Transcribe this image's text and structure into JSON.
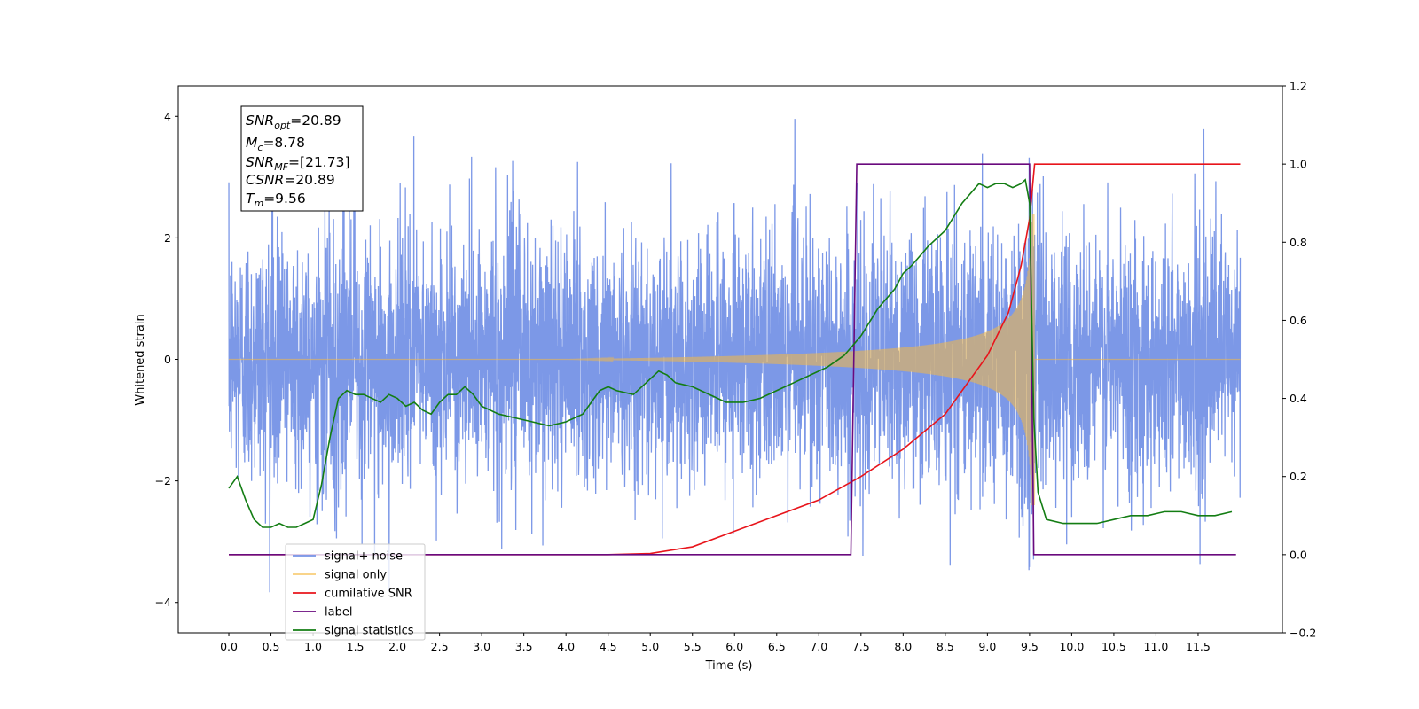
{
  "chart_data": {
    "type": "line",
    "xlabel": "Time (s)",
    "ylabel": "Whitened strain",
    "ylabel_right": "",
    "xlim": [
      -0.6,
      12.5
    ],
    "ylim": [
      -4.5,
      4.5
    ],
    "ylim_right": [
      -0.2,
      1.2
    ],
    "x_ticks": [
      0.0,
      0.5,
      1.0,
      1.5,
      2.0,
      2.5,
      3.0,
      3.5,
      4.0,
      4.5,
      5.0,
      5.5,
      6.0,
      6.5,
      7.0,
      7.5,
      8.0,
      8.5,
      9.0,
      9.5,
      10.0,
      10.5,
      11.0,
      11.5
    ],
    "x_tick_labels": [
      "0.0",
      "0.5",
      "1.0",
      "1.5",
      "2.0",
      "2.5",
      "3.0",
      "3.5",
      "4.0",
      "4.5",
      "5.0",
      "5.5",
      "6.0",
      "6.5",
      "7.0",
      "7.5",
      "8.0",
      "8.5",
      "9.0",
      "9.5",
      "10.0",
      "10.5",
      "11.0",
      "11.5"
    ],
    "y_ticks": [
      -4,
      -2,
      0,
      2,
      4
    ],
    "y_tick_labels": [
      "−4",
      "−2",
      "0",
      "2",
      "4"
    ],
    "y_right_ticks": [
      -0.2,
      0.0,
      0.2,
      0.4,
      0.6,
      0.8,
      1.0,
      1.2
    ],
    "y_right_tick_labels": [
      "−0.2",
      "0.0",
      "0.2",
      "0.4",
      "0.6",
      "0.8",
      "1.0",
      "1.2"
    ],
    "grid": false,
    "legend_position": "lower-left",
    "annotation": {
      "snr_opt": {
        "label": "SNR",
        "sub": "opt",
        "value": "=20.89"
      },
      "mc": {
        "label": "M",
        "sub": "c",
        "value": "=8.78"
      },
      "snr_mf": {
        "label": "SNR",
        "sub": "MF",
        "value": "=[21.73]"
      },
      "csnr": {
        "label": "CSNR",
        "sub": "",
        "value": "=20.89"
      },
      "tm": {
        "label": "T",
        "sub": "m",
        "value": "=9.56"
      }
    },
    "series": [
      {
        "name": "signal+ noise",
        "color": "#7592e6",
        "axis": "left",
        "x_range": [
          0.0,
          12.0
        ],
        "noise_std": 1.0,
        "noise_min": -4.1,
        "noise_max": 4.1,
        "note_values": "dense noisy strain samples"
      },
      {
        "name": "signal only",
        "color": "#f5b942",
        "axis": "left",
        "x_range": [
          0.0,
          12.0
        ],
        "chirp_start": 4.0,
        "chirp_end": 9.56,
        "chirp_peak_amplitude": 2.4
      },
      {
        "name": "cumilative SNR",
        "color": "#e8141b",
        "axis": "right",
        "x": [
          0.0,
          4.5,
          5.0,
          5.5,
          6.0,
          6.5,
          7.0,
          7.5,
          8.0,
          8.5,
          9.0,
          9.25,
          9.4,
          9.5,
          9.56,
          12.0
        ],
        "values": [
          0.0,
          0.0,
          0.003,
          0.02,
          0.06,
          0.1,
          0.14,
          0.2,
          0.27,
          0.36,
          0.51,
          0.62,
          0.74,
          0.86,
          1.0,
          1.0
        ]
      },
      {
        "name": "label",
        "color": "#6a0a7e",
        "axis": "right",
        "x": [
          0.0,
          7.38,
          7.45,
          9.5,
          9.55,
          11.95
        ],
        "values": [
          0.0,
          0.0,
          1.0,
          1.0,
          0.0,
          0.0
        ]
      },
      {
        "name": "signal statistics",
        "color": "#137d13",
        "axis": "right",
        "x": [
          0.0,
          0.1,
          0.2,
          0.3,
          0.4,
          0.5,
          0.6,
          0.7,
          0.8,
          0.9,
          1.0,
          1.1,
          1.2,
          1.3,
          1.4,
          1.5,
          1.6,
          1.7,
          1.8,
          1.9,
          2.0,
          2.1,
          2.2,
          2.3,
          2.4,
          2.5,
          2.6,
          2.7,
          2.8,
          2.9,
          3.0,
          3.2,
          3.4,
          3.6,
          3.8,
          4.0,
          4.2,
          4.3,
          4.4,
          4.5,
          4.6,
          4.8,
          5.0,
          5.1,
          5.2,
          5.3,
          5.5,
          5.7,
          5.9,
          6.1,
          6.3,
          6.5,
          6.7,
          6.9,
          7.1,
          7.3,
          7.5,
          7.7,
          7.9,
          8.0,
          8.1,
          8.3,
          8.5,
          8.7,
          8.9,
          9.0,
          9.1,
          9.2,
          9.3,
          9.4,
          9.45,
          9.5,
          9.55,
          9.6,
          9.7,
          9.9,
          10.1,
          10.3,
          10.5,
          10.7,
          10.9,
          11.1,
          11.3,
          11.5,
          11.7,
          11.9
        ],
        "values": [
          0.17,
          0.2,
          0.14,
          0.09,
          0.07,
          0.07,
          0.08,
          0.07,
          0.07,
          0.08,
          0.09,
          0.18,
          0.3,
          0.4,
          0.42,
          0.41,
          0.41,
          0.4,
          0.39,
          0.41,
          0.4,
          0.38,
          0.39,
          0.37,
          0.36,
          0.39,
          0.41,
          0.41,
          0.43,
          0.41,
          0.38,
          0.36,
          0.35,
          0.34,
          0.33,
          0.34,
          0.36,
          0.39,
          0.42,
          0.43,
          0.42,
          0.41,
          0.45,
          0.47,
          0.46,
          0.44,
          0.43,
          0.41,
          0.39,
          0.39,
          0.4,
          0.42,
          0.44,
          0.46,
          0.48,
          0.51,
          0.56,
          0.63,
          0.68,
          0.72,
          0.74,
          0.79,
          0.83,
          0.9,
          0.95,
          0.94,
          0.95,
          0.95,
          0.94,
          0.95,
          0.96,
          0.9,
          0.35,
          0.16,
          0.09,
          0.08,
          0.08,
          0.08,
          0.09,
          0.1,
          0.1,
          0.11,
          0.11,
          0.1,
          0.1,
          0.11
        ]
      }
    ]
  }
}
